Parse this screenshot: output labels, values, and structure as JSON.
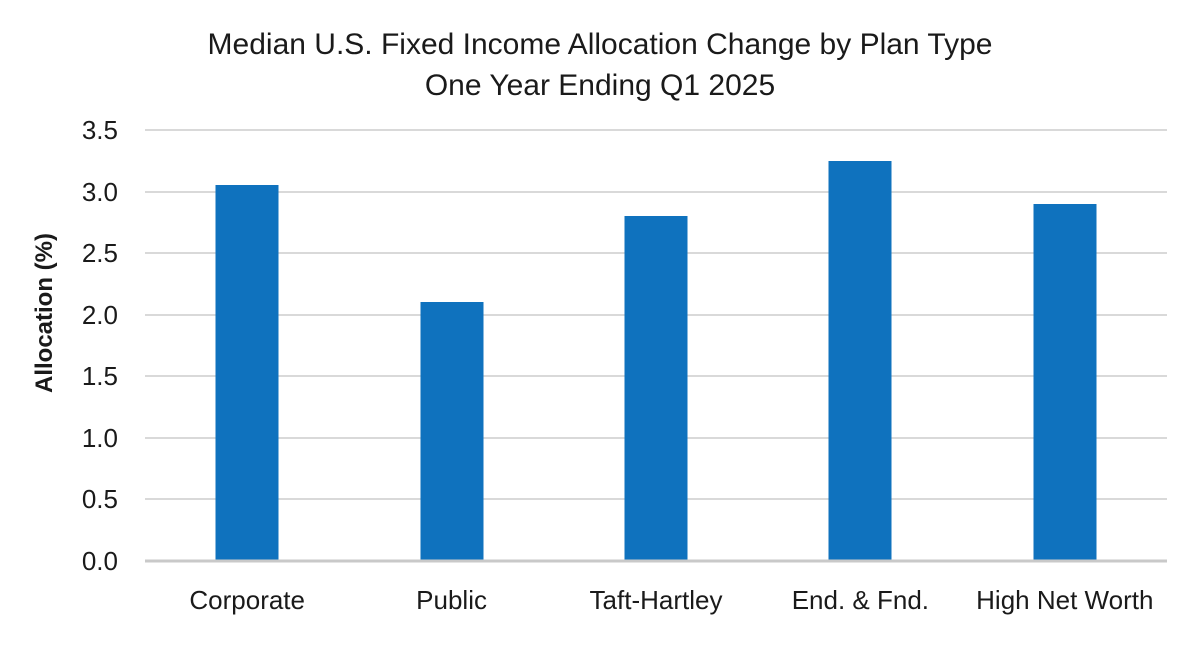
{
  "chart_data": {
    "type": "bar",
    "title": "Median U.S. Fixed Income Allocation Change by Plan Type",
    "subtitle": "One Year Ending Q1 2025",
    "ylabel": "Allocation (%)",
    "xlabel": "",
    "categories": [
      "Corporate",
      "Public",
      "Taft-Hartley",
      "End. & Fnd.",
      "High Net Worth"
    ],
    "values": [
      3.05,
      2.1,
      2.8,
      3.25,
      2.9
    ],
    "ylim": [
      0.0,
      3.5
    ],
    "ytick_step": 0.5,
    "yticks": [
      {
        "value": 3.5,
        "label": "3.5"
      },
      {
        "value": 3.0,
        "label": "3.0"
      },
      {
        "value": 2.5,
        "label": "2.5"
      },
      {
        "value": 2.0,
        "label": "2.0"
      },
      {
        "value": 1.5,
        "label": "1.5"
      },
      {
        "value": 1.0,
        "label": "1.0"
      },
      {
        "value": 0.5,
        "label": "0.5"
      },
      {
        "value": 0.0,
        "label": "0.0"
      }
    ],
    "grid": "horizontal",
    "legend": "none",
    "colors": {
      "bar": "#0f72be",
      "gridline": "#d9d9d9",
      "baseline": "#c9c9c9",
      "text": "#1a1a1a",
      "background": "#ffffff"
    }
  }
}
